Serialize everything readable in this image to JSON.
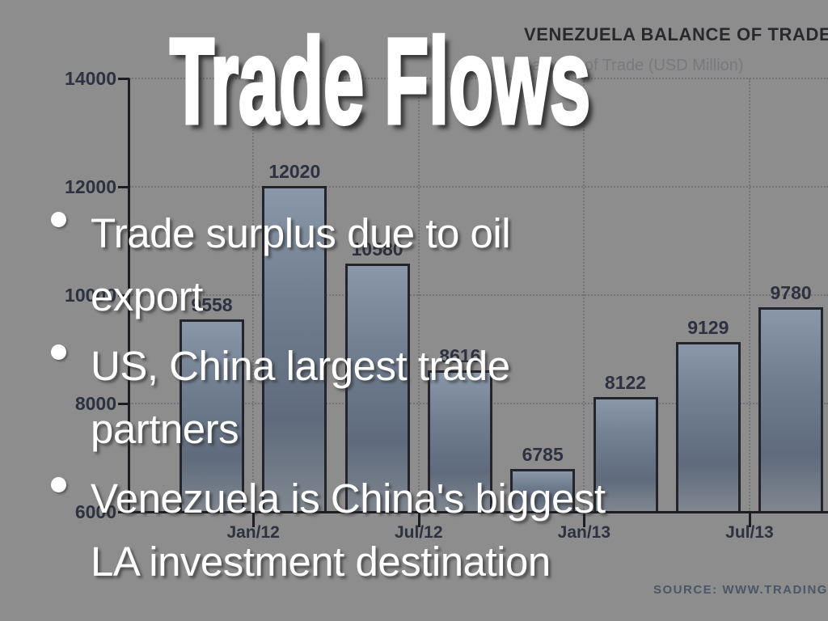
{
  "slide": {
    "title": "Trade Flows",
    "bullets": [
      {
        "lines": [
          "Trade surplus due to oil",
          "export"
        ]
      },
      {
        "lines": [
          "US, China largest trade",
          "partners"
        ]
      },
      {
        "lines": [
          "Venezuela is China's biggest",
          "LA investment destination"
        ]
      }
    ]
  },
  "chart_data": {
    "type": "bar",
    "title": "VENEZUELA BALANCE OF TRADE",
    "subtitle": "Balance of Trade (USD Million)",
    "source": "SOURCE: WWW.TRADINGECONOMICS.COM",
    "values": [
      9558,
      12020,
      10580,
      8616,
      6785,
      8122,
      9129,
      9780
    ],
    "value_labels": [
      "9558",
      "12020",
      "10580",
      "8616",
      "6785",
      "8122",
      "9129",
      "9780"
    ],
    "y_ticks": [
      14000,
      12000,
      10000,
      8000,
      6000
    ],
    "ylim": [
      6000,
      14000
    ],
    "x_tick_labels": [
      "Jan/12",
      "Jul/12",
      "Jan/13",
      "Jul/13"
    ],
    "grid": "dotted",
    "legend": "none"
  },
  "colors": {
    "background": "#8d8d8d",
    "bar_fill_top": "#8997a9",
    "bar_fill_bottom": "#7f8790",
    "bar_border": "#23252b",
    "axis": "#1c1d22",
    "gridline": "#737377",
    "chart_label_text": "#2d3140",
    "chart_title_text": "#29292d",
    "chart_subtitle_text": "#7a7a7e",
    "source_text": "#4b5765",
    "slide_text": "#ffffff"
  }
}
